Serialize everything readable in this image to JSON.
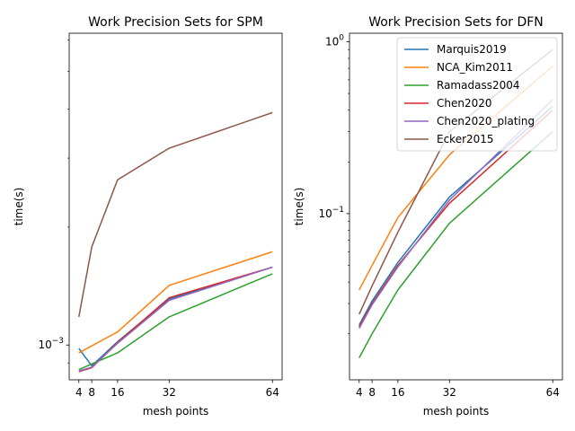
{
  "chart_data": [
    {
      "type": "line",
      "title": "Work Precision Sets for SPM",
      "xlabel": "mesh points",
      "ylabel": "time(s)",
      "yscale": "log",
      "x": [
        4,
        8,
        16,
        32,
        64
      ],
      "x_tick_labels": [
        "4",
        "8",
        "16",
        "32",
        "64"
      ],
      "y_tick_labels": [
        "10^{-3}"
      ],
      "ylim": [
        0.000815,
        0.00625
      ],
      "series": [
        {
          "name": "Marquis2019",
          "color": "#1f77b4",
          "values": [
            0.00098,
            0.000885,
            0.00102,
            0.00131,
            0.00158
          ]
        },
        {
          "name": "NCA_Kim2011",
          "color": "#ff7f0e",
          "values": [
            0.000955,
            0.000995,
            0.00108,
            0.00142,
            0.00173
          ]
        },
        {
          "name": "Ramadass2004",
          "color": "#2ca02c",
          "values": [
            0.000865,
            0.000895,
            0.000955,
            0.00118,
            0.00152
          ]
        },
        {
          "name": "Chen2020",
          "color": "#d62728",
          "values": [
            0.000855,
            0.000875,
            0.001015,
            0.00132,
            0.00158
          ]
        },
        {
          "name": "Chen2020_plating",
          "color": "#9467bd",
          "values": [
            0.000858,
            0.000878,
            0.00101,
            0.0013,
            0.00158
          ]
        },
        {
          "name": "Ecker2015",
          "color": "#8c564b",
          "values": [
            0.00118,
            0.00178,
            0.00264,
            0.00318,
            0.00392
          ]
        }
      ]
    },
    {
      "type": "line",
      "title": "Work Precision Sets for DFN",
      "xlabel": "mesh points",
      "ylabel": "time(s)",
      "yscale": "log",
      "x": [
        4,
        8,
        16,
        32,
        64
      ],
      "x_tick_labels": [
        "4",
        "8",
        "16",
        "32",
        "64"
      ],
      "y_tick_labels": [
        "10^{-1}",
        "10^{0}"
      ],
      "ylim": [
        0.0108,
        1.12
      ],
      "legend": "top-right",
      "series": [
        {
          "name": "Marquis2019",
          "color": "#1f77b4",
          "values": [
            0.0225,
            0.031,
            0.052,
            0.125,
            0.42
          ]
        },
        {
          "name": "NCA_Kim2011",
          "color": "#ff7f0e",
          "values": [
            0.036,
            0.05,
            0.095,
            0.22,
            0.72
          ]
        },
        {
          "name": "Ramadass2004",
          "color": "#2ca02c",
          "values": [
            0.0145,
            0.02,
            0.036,
            0.088,
            0.3
          ]
        },
        {
          "name": "Chen2020",
          "color": "#d62728",
          "values": [
            0.022,
            0.03,
            0.05,
            0.115,
            0.4
          ]
        },
        {
          "name": "Chen2020_plating",
          "color": "#9467bd",
          "values": [
            0.0215,
            0.0295,
            0.049,
            0.12,
            0.46
          ]
        },
        {
          "name": "Ecker2015",
          "color": "#8c564b",
          "values": [
            0.026,
            0.038,
            0.078,
            0.3,
            0.9
          ]
        }
      ]
    }
  ]
}
